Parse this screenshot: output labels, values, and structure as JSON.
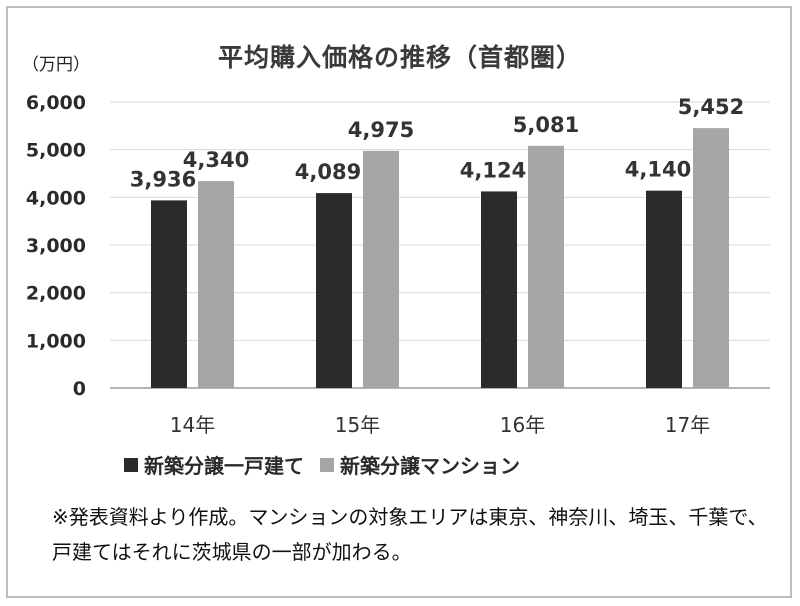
{
  "chart_data": {
    "type": "bar",
    "title": "平均購入価格の推移（首都圏）",
    "ylabel": "（万円）",
    "categories": [
      "14年",
      "15年",
      "16年",
      "17年"
    ],
    "series": [
      {
        "name": "新築分譲一戸建て",
        "color": "#2b2b2b",
        "values": [
          3936,
          4089,
          4124,
          4140
        ],
        "labels": [
          "3,936",
          "4,089",
          "4,124",
          "4,140"
        ]
      },
      {
        "name": "新築分譲マンション",
        "color": "#a6a6a6",
        "values": [
          4340,
          4975,
          5081,
          5452
        ],
        "labels": [
          "4,340",
          "4,975",
          "5,081",
          "5,452"
        ]
      }
    ],
    "ylim": [
      0,
      6000
    ],
    "yticks": [
      0,
      1000,
      2000,
      3000,
      4000,
      5000,
      6000
    ],
    "ytick_labels": [
      "0",
      "1,000",
      "2,000",
      "3,000",
      "4,000",
      "5,000",
      "6,000"
    ],
    "grid": true,
    "legend": "bottom"
  },
  "note": "※発表資料より作成。マンションの対象エリアは東京、神奈川、埼玉、千葉で、戸建てはそれに茨城県の一部が加わる。"
}
